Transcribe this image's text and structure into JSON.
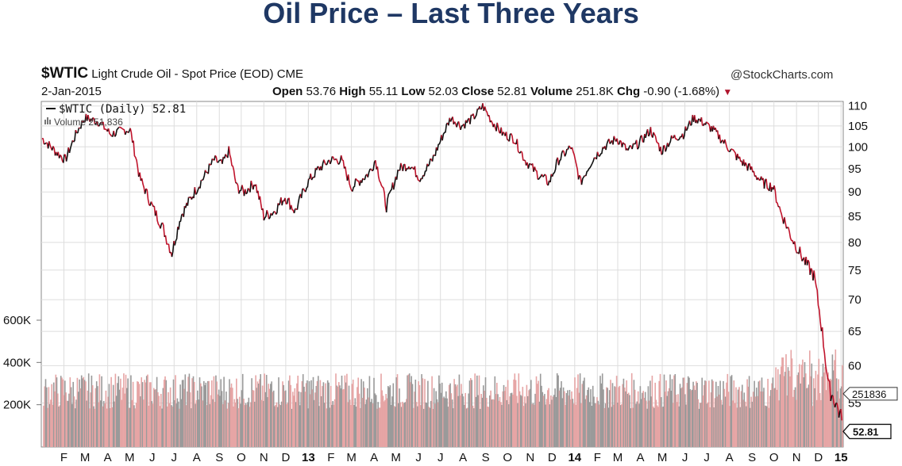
{
  "slide": {
    "title": "Oil Price – Last Three Years"
  },
  "header": {
    "symbol": "$WTIC",
    "name": "Light Crude Oil - Spot Price (EOD)",
    "exchange": "CME",
    "brand": "@StockCharts.com",
    "date": "2-Jan-2015",
    "open_label": "Open",
    "open": "53.76",
    "high_label": "High",
    "high": "55.11",
    "low_label": "Low",
    "low": "52.03",
    "close_label": "Close",
    "close": "52.81",
    "volume_label": "Volume",
    "volume": "251.8K",
    "chg_label": "Chg",
    "chg": "-0.90 (-1.68%)"
  },
  "legend": {
    "price": "$WTIC (Daily) 52.81",
    "volume": "Volume 251,836"
  },
  "colors": {
    "up": "#111111",
    "down": "#c0142c",
    "vol_up": "#9a9a9a",
    "vol_down": "#e6a5a5",
    "grid": "#dddddd",
    "title": "#1f3864"
  },
  "chart_data": {
    "type": "line",
    "title": "$WTIC Light Crude Oil - Spot Price (EOD)",
    "log_scale": true,
    "ylim": [
      50,
      112
    ],
    "y_ticks": [
      55,
      60,
      65,
      70,
      75,
      80,
      85,
      90,
      95,
      100,
      105,
      110
    ],
    "volume_ticks": [
      {
        "label": "200K",
        "value": 200000
      },
      {
        "label": "400K",
        "value": 400000
      },
      {
        "label": "600K",
        "value": 600000
      }
    ],
    "x_labels": [
      "F",
      "M",
      "A",
      "M",
      "J",
      "J",
      "A",
      "S",
      "O",
      "N",
      "D",
      "13",
      "F",
      "M",
      "A",
      "M",
      "J",
      "J",
      "A",
      "S",
      "O",
      "N",
      "D",
      "14",
      "F",
      "M",
      "A",
      "M",
      "J",
      "J",
      "A",
      "S",
      "O",
      "N",
      "D",
      "15"
    ],
    "bold_x_labels": [
      "13",
      "14",
      "15"
    ],
    "series": [
      {
        "name": "$WTIC (Daily)",
        "anchors": [
          [
            "2012-01-02",
            102
          ],
          [
            "2012-01-20",
            99
          ],
          [
            "2012-02-03",
            97
          ],
          [
            "2012-02-20",
            104
          ],
          [
            "2012-03-01",
            107
          ],
          [
            "2012-03-20",
            106
          ],
          [
            "2012-04-05",
            103
          ],
          [
            "2012-04-25",
            104
          ],
          [
            "2012-05-02",
            104
          ],
          [
            "2012-05-15",
            93
          ],
          [
            "2012-06-01",
            87
          ],
          [
            "2012-06-15",
            83
          ],
          [
            "2012-06-28",
            78
          ],
          [
            "2012-07-10",
            85
          ],
          [
            "2012-07-25",
            89
          ],
          [
            "2012-08-10",
            93
          ],
          [
            "2012-08-25",
            97
          ],
          [
            "2012-09-05",
            96
          ],
          [
            "2012-09-14",
            99
          ],
          [
            "2012-09-25",
            91
          ],
          [
            "2012-10-05",
            90
          ],
          [
            "2012-10-20",
            92
          ],
          [
            "2012-11-01",
            85
          ],
          [
            "2012-11-15",
            86
          ],
          [
            "2012-11-30",
            89
          ],
          [
            "2012-12-14",
            86
          ],
          [
            "2012-12-31",
            92
          ],
          [
            "2013-01-15",
            95
          ],
          [
            "2013-01-31",
            97
          ],
          [
            "2013-02-15",
            97
          ],
          [
            "2013-03-01",
            91
          ],
          [
            "2013-03-25",
            94
          ],
          [
            "2013-04-03",
            97
          ],
          [
            "2013-04-18",
            87
          ],
          [
            "2013-05-05",
            95
          ],
          [
            "2013-05-20",
            96
          ],
          [
            "2013-06-03",
            93
          ],
          [
            "2013-06-20",
            97
          ],
          [
            "2013-07-05",
            103
          ],
          [
            "2013-07-15",
            107
          ],
          [
            "2013-07-30",
            105
          ],
          [
            "2013-08-15",
            107
          ],
          [
            "2013-08-28",
            110
          ],
          [
            "2013-09-10",
            106
          ],
          [
            "2013-09-25",
            103
          ],
          [
            "2013-10-10",
            102
          ],
          [
            "2013-10-25",
            97
          ],
          [
            "2013-11-10",
            94
          ],
          [
            "2013-11-27",
            92
          ],
          [
            "2013-12-10",
            97
          ],
          [
            "2013-12-27",
            100
          ],
          [
            "2014-01-09",
            92
          ],
          [
            "2014-01-25",
            97
          ],
          [
            "2014-02-10",
            100
          ],
          [
            "2014-02-28",
            102
          ],
          [
            "2014-03-15",
            99
          ],
          [
            "2014-03-31",
            101
          ],
          [
            "2014-04-15",
            104
          ],
          [
            "2014-04-30",
            99
          ],
          [
            "2014-05-15",
            102
          ],
          [
            "2014-05-30",
            103
          ],
          [
            "2014-06-13",
            107
          ],
          [
            "2014-06-25",
            106
          ],
          [
            "2014-07-10",
            104
          ],
          [
            "2014-07-30",
            100
          ],
          [
            "2014-08-15",
            97
          ],
          [
            "2014-08-30",
            95
          ],
          [
            "2014-09-15",
            92
          ],
          [
            "2014-09-30",
            91
          ],
          [
            "2014-10-10",
            86
          ],
          [
            "2014-10-25",
            81
          ],
          [
            "2014-11-10",
            77
          ],
          [
            "2014-11-25",
            74
          ],
          [
            "2014-12-05",
            66
          ],
          [
            "2014-12-15",
            57
          ],
          [
            "2014-12-25",
            55
          ],
          [
            "2015-01-02",
            52.81
          ]
        ]
      }
    ],
    "last_value": "52.81",
    "last_volume": "251836"
  }
}
